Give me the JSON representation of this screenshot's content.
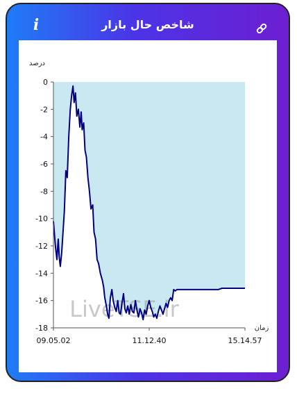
{
  "header": {
    "title": "شاخص حال بازار",
    "info_label": "i",
    "info_icon": "info-icon",
    "link_icon": "link-icon"
  },
  "colors": {
    "gradient_start": "#1f7cf6",
    "gradient_end": "#6d1fd1",
    "chart_fill": "#c9e8f2",
    "chart_line": "#000080"
  },
  "chart_data": {
    "type": "area",
    "title": "",
    "ylabel": "درصد",
    "xlabel": "زمان",
    "watermark": "LiveTSE.ir",
    "ylim": [
      -18,
      0
    ],
    "yticks": [
      0,
      -2,
      -4,
      -6,
      -8,
      -10,
      -12,
      -14,
      -16,
      -18
    ],
    "ytick_labels": [
      "0",
      "-2",
      "-4",
      "-6",
      "-8",
      "-10",
      "-12",
      "-14",
      "-16",
      "-18"
    ],
    "xtick_labels": [
      "09.05.02",
      "11.12.40",
      "15.14.57"
    ],
    "xtick_positions": [
      0,
      0.5,
      1
    ],
    "grid": false,
    "series": [
      {
        "values": [
          [
            0.0,
            -10.2
          ],
          [
            0.01,
            -12.0
          ],
          [
            0.018,
            -13.0
          ],
          [
            0.025,
            -11.5
          ],
          [
            0.03,
            -12.8
          ],
          [
            0.036,
            -13.5
          ],
          [
            0.043,
            -12.5
          ],
          [
            0.05,
            -11.0
          ],
          [
            0.057,
            -9.5
          ],
          [
            0.065,
            -6.5
          ],
          [
            0.072,
            -7.0
          ],
          [
            0.08,
            -4.0
          ],
          [
            0.088,
            -2.0
          ],
          [
            0.095,
            -1.0
          ],
          [
            0.102,
            -0.3
          ],
          [
            0.108,
            -1.5
          ],
          [
            0.115,
            -0.8
          ],
          [
            0.122,
            -2.5
          ],
          [
            0.13,
            -2.0
          ],
          [
            0.138,
            -3.3
          ],
          [
            0.145,
            -2.2
          ],
          [
            0.15,
            -3.5
          ],
          [
            0.158,
            -3.0
          ],
          [
            0.165,
            -5.0
          ],
          [
            0.172,
            -5.5
          ],
          [
            0.18,
            -7.0
          ],
          [
            0.188,
            -8.0
          ],
          [
            0.196,
            -9.3
          ],
          [
            0.205,
            -9.0
          ],
          [
            0.212,
            -11.0
          ],
          [
            0.22,
            -11.5
          ],
          [
            0.228,
            -13.0
          ],
          [
            0.236,
            -13.3
          ],
          [
            0.245,
            -14.0
          ],
          [
            0.255,
            -14.5
          ],
          [
            0.262,
            -15.0
          ],
          [
            0.268,
            -15.8
          ],
          [
            0.275,
            -16.3
          ],
          [
            0.283,
            -17.0
          ],
          [
            0.29,
            -17.3
          ],
          [
            0.297,
            -15.8
          ],
          [
            0.305,
            -15.2
          ],
          [
            0.312,
            -16.0
          ],
          [
            0.32,
            -16.5
          ],
          [
            0.328,
            -16.8
          ],
          [
            0.336,
            -16.0
          ],
          [
            0.343,
            -16.9
          ],
          [
            0.35,
            -17.0
          ],
          [
            0.358,
            -16.2
          ],
          [
            0.366,
            -15.5
          ],
          [
            0.373,
            -16.6
          ],
          [
            0.38,
            -16.9
          ],
          [
            0.388,
            -16.4
          ],
          [
            0.396,
            -17.0
          ],
          [
            0.404,
            -16.3
          ],
          [
            0.412,
            -16.8
          ],
          [
            0.42,
            -16.9
          ],
          [
            0.428,
            -16.0
          ],
          [
            0.436,
            -16.7
          ],
          [
            0.444,
            -17.2
          ],
          [
            0.452,
            -16.6
          ],
          [
            0.46,
            -16.9
          ],
          [
            0.468,
            -17.4
          ],
          [
            0.476,
            -16.7
          ],
          [
            0.484,
            -17.0
          ],
          [
            0.492,
            -16.4
          ],
          [
            0.5,
            -16.0
          ],
          [
            0.508,
            -16.5
          ],
          [
            0.516,
            -16.8
          ],
          [
            0.524,
            -17.2
          ],
          [
            0.532,
            -17.0
          ],
          [
            0.54,
            -17.3
          ],
          [
            0.548,
            -16.8
          ],
          [
            0.556,
            -16.4
          ],
          [
            0.564,
            -16.7
          ],
          [
            0.572,
            -17.0
          ],
          [
            0.58,
            -16.6
          ],
          [
            0.588,
            -16.2
          ],
          [
            0.596,
            -16.5
          ],
          [
            0.604,
            -16.0
          ],
          [
            0.612,
            -15.8
          ],
          [
            0.62,
            -16.0
          ],
          [
            0.628,
            -15.2
          ],
          [
            0.636,
            -15.3
          ],
          [
            0.645,
            -15.2
          ],
          [
            0.66,
            -15.2
          ],
          [
            0.68,
            -15.2
          ],
          [
            0.7,
            -15.2
          ],
          [
            0.72,
            -15.2
          ],
          [
            0.74,
            -15.2
          ],
          [
            0.76,
            -15.2
          ],
          [
            0.78,
            -15.2
          ],
          [
            0.8,
            -15.2
          ],
          [
            0.82,
            -15.2
          ],
          [
            0.84,
            -15.2
          ],
          [
            0.86,
            -15.2
          ],
          [
            0.88,
            -15.1
          ],
          [
            0.9,
            -15.1
          ],
          [
            0.92,
            -15.1
          ],
          [
            0.94,
            -15.1
          ],
          [
            0.96,
            -15.1
          ],
          [
            0.98,
            -15.1
          ],
          [
            1.0,
            -15.1
          ]
        ]
      }
    ]
  }
}
